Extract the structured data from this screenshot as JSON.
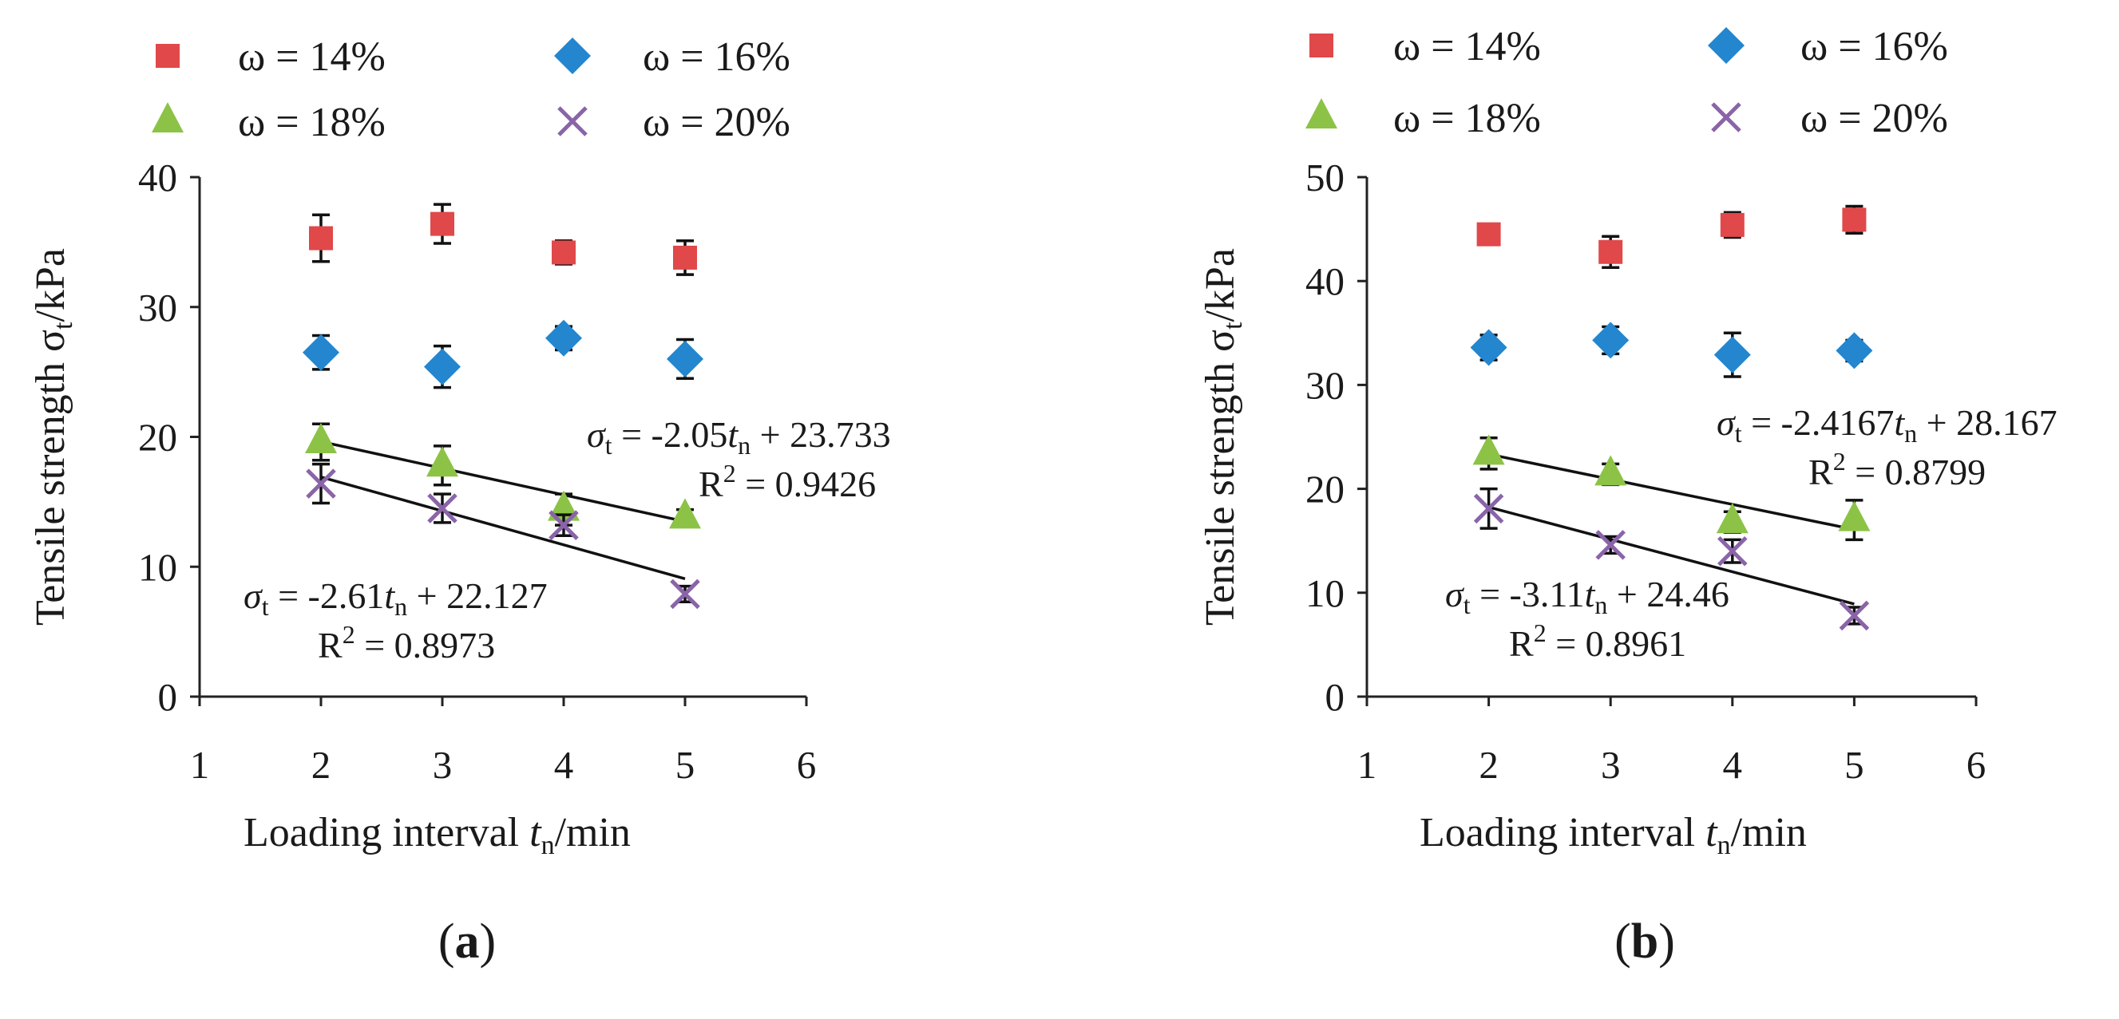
{
  "chart_data": [
    {
      "type": "scatter",
      "panel_label": "a",
      "xlabel": "Loading interval",
      "xlabel_var": "t",
      "xlabel_sub": "n",
      "xlabel_unit": "/min",
      "ylabel": "Tensile strength σ",
      "ylabel_sub": "t",
      "ylabel_unit": "/kPa",
      "xlim": [
        1,
        6
      ],
      "ylim": [
        0,
        40
      ],
      "xticks": [
        1,
        2,
        3,
        4,
        5,
        6
      ],
      "yticks": [
        0,
        10,
        20,
        30,
        40
      ],
      "legend_position": "top",
      "series": [
        {
          "name": "ω = 14%",
          "marker": "square",
          "color": "#e0484a",
          "x": [
            2,
            3,
            4,
            5
          ],
          "y": [
            35.3,
            36.4,
            34.2,
            33.8
          ],
          "err": [
            1.8,
            1.5,
            0.9,
            1.3
          ]
        },
        {
          "name": "ω = 16%",
          "marker": "diamond",
          "color": "#2386cf",
          "x": [
            2,
            3,
            4,
            5
          ],
          "y": [
            26.5,
            25.4,
            27.6,
            26.0
          ],
          "err": [
            1.3,
            1.6,
            0.9,
            1.5
          ]
        },
        {
          "name": "ω = 18%",
          "marker": "triangle",
          "color": "#8cc346",
          "x": [
            2,
            3,
            4,
            5
          ],
          "y": [
            19.6,
            17.8,
            14.4,
            13.8
          ],
          "err": [
            1.4,
            1.5,
            1.2,
            0.6
          ]
        },
        {
          "name": "ω = 20%",
          "marker": "x",
          "color": "#8a64a8",
          "x": [
            2,
            3,
            4,
            5
          ],
          "y": [
            16.4,
            14.5,
            13.2,
            7.9
          ],
          "err": [
            1.5,
            1.1,
            0.8,
            0.6
          ]
        }
      ],
      "trendlines": [
        {
          "series": "ω = 18%",
          "slope": -2.05,
          "intercept": 23.733,
          "x_range": [
            2,
            5
          ],
          "eq_lead": "σ",
          "eq_lead_sub": "t",
          "eq_mid": " = -2.05",
          "eq_var": "t",
          "eq_var_sub": "n",
          "eq_tail": " + 23.733",
          "r2_prefix": "R",
          "r2_sup": "2",
          "r2_value": " = 0.9426"
        },
        {
          "series": "ω = 20%",
          "slope": -2.61,
          "intercept": 22.127,
          "x_range": [
            2,
            5
          ],
          "eq_lead": "σ",
          "eq_lead_sub": "t",
          "eq_mid": " = -2.61",
          "eq_var": "t",
          "eq_var_sub": "n",
          "eq_tail": " + 22.127",
          "r2_prefix": "R",
          "r2_sup": "2",
          "r2_value": " = 0.8973"
        }
      ]
    },
    {
      "type": "scatter",
      "panel_label": "b",
      "xlabel": "Loading interval",
      "xlabel_var": "t",
      "xlabel_sub": "n",
      "xlabel_unit": "/min",
      "ylabel": "Tensile strength σ",
      "ylabel_sub": "t",
      "ylabel_unit": "/kPa",
      "xlim": [
        1,
        6
      ],
      "ylim": [
        0,
        50
      ],
      "xticks": [
        1,
        2,
        3,
        4,
        5,
        6
      ],
      "yticks": [
        0,
        10,
        20,
        30,
        40,
        50
      ],
      "legend_position": "top",
      "series": [
        {
          "name": "ω = 14%",
          "marker": "square",
          "color": "#e0484a",
          "x": [
            2,
            3,
            4,
            5
          ],
          "y": [
            44.5,
            42.8,
            45.4,
            45.9
          ],
          "err": [
            0.8,
            1.5,
            1.2,
            1.3
          ]
        },
        {
          "name": "ω = 16%",
          "marker": "diamond",
          "color": "#2386cf",
          "x": [
            2,
            3,
            4,
            5
          ],
          "y": [
            33.6,
            34.3,
            32.9,
            33.3
          ],
          "err": [
            1.2,
            1.3,
            2.1,
            1.0
          ]
        },
        {
          "name": "ω = 18%",
          "marker": "triangle",
          "color": "#8cc346",
          "x": [
            2,
            3,
            4,
            5
          ],
          "y": [
            23.4,
            21.4,
            16.8,
            17.0
          ],
          "err": [
            1.5,
            1.0,
            1.0,
            1.9
          ]
        },
        {
          "name": "ω = 20%",
          "marker": "x",
          "color": "#8a64a8",
          "x": [
            2,
            3,
            4,
            5
          ],
          "y": [
            18.1,
            14.6,
            14.0,
            7.8
          ],
          "err": [
            1.9,
            0.8,
            1.1,
            0.8
          ]
        }
      ],
      "trendlines": [
        {
          "series": "ω = 18%",
          "slope": -2.4167,
          "intercept": 28.167,
          "x_range": [
            2,
            5
          ],
          "eq_lead": "σ",
          "eq_lead_sub": "t",
          "eq_mid": " = -2.4167",
          "eq_var": "t",
          "eq_var_sub": "n",
          "eq_tail": " + 28.167",
          "r2_prefix": "R",
          "r2_sup": "2",
          "r2_value": " = 0.8799"
        },
        {
          "series": "ω = 20%",
          "slope": -3.11,
          "intercept": 24.46,
          "x_range": [
            2,
            5
          ],
          "eq_lead": "σ",
          "eq_lead_sub": "t",
          "eq_mid": " = -3.11",
          "eq_var": "t",
          "eq_var_sub": "n",
          "eq_tail": " + 24.46",
          "r2_prefix": "R",
          "r2_sup": "2",
          "r2_value": " = 0.8961"
        }
      ]
    }
  ]
}
